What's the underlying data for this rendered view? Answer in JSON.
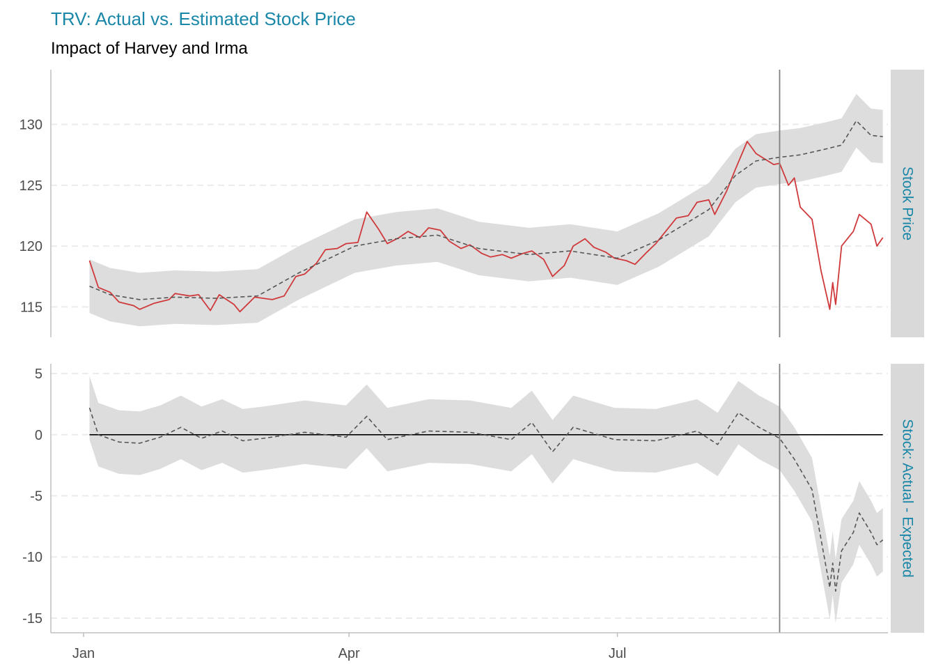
{
  "chart_title": "TRV: Actual vs. Estimated Stock Price",
  "chart_subtitle": "Impact of Harvey and Irma",
  "colors": {
    "title": "#1a87a8",
    "actual_line": "#d0393b",
    "expected_line": "#555555",
    "ribbon": "#dddddd",
    "strip_bg": "#d9d9d9",
    "gridline": "#ebebeb",
    "axis": "#bfbfbf",
    "event_line": "#808080"
  },
  "chart_data": [
    {
      "type": "line",
      "facet_label": "Stock Price",
      "x_domain": [
        "2017-01-03",
        "2017-09-29"
      ],
      "x_ticks": [
        "Jan",
        "Apr",
        "Jul"
      ],
      "y_ticks": [
        "115",
        "120",
        "125",
        "130"
      ],
      "ylim": [
        112.5,
        134.5
      ],
      "event_date": "2017-08-25",
      "grid": "horizontal dashed",
      "series": [
        {
          "role": "actual",
          "style": "solid red",
          "points": [
            [
              "2017-01-03",
              118.8
            ],
            [
              "2017-01-06",
              116.6
            ],
            [
              "2017-01-10",
              116.2
            ],
            [
              "2017-01-13",
              115.4
            ],
            [
              "2017-01-18",
              115.1
            ],
            [
              "2017-01-20",
              114.8
            ],
            [
              "2017-01-25",
              115.3
            ],
            [
              "2017-01-30",
              115.6
            ],
            [
              "2017-02-01",
              116.1
            ],
            [
              "2017-02-06",
              115.9
            ],
            [
              "2017-02-09",
              116.0
            ],
            [
              "2017-02-13",
              114.7
            ],
            [
              "2017-02-16",
              116.0
            ],
            [
              "2017-02-21",
              115.2
            ],
            [
              "2017-02-23",
              114.6
            ],
            [
              "2017-02-28",
              115.8
            ],
            [
              "2017-03-03",
              115.7
            ],
            [
              "2017-03-06",
              115.6
            ],
            [
              "2017-03-10",
              115.9
            ],
            [
              "2017-03-14",
              117.5
            ],
            [
              "2017-03-17",
              117.7
            ],
            [
              "2017-03-21",
              118.6
            ],
            [
              "2017-03-24",
              119.7
            ],
            [
              "2017-03-28",
              119.8
            ],
            [
              "2017-03-31",
              120.2
            ],
            [
              "2017-04-04",
              120.3
            ],
            [
              "2017-04-07",
              122.8
            ],
            [
              "2017-04-11",
              121.4
            ],
            [
              "2017-04-14",
              120.2
            ],
            [
              "2017-04-18",
              120.7
            ],
            [
              "2017-04-21",
              121.2
            ],
            [
              "2017-04-25",
              120.7
            ],
            [
              "2017-04-28",
              121.5
            ],
            [
              "2017-05-02",
              121.3
            ],
            [
              "2017-05-05",
              120.4
            ],
            [
              "2017-05-09",
              119.8
            ],
            [
              "2017-05-12",
              120.1
            ],
            [
              "2017-05-16",
              119.4
            ],
            [
              "2017-05-19",
              119.1
            ],
            [
              "2017-05-23",
              119.3
            ],
            [
              "2017-05-26",
              119.0
            ],
            [
              "2017-05-30",
              119.4
            ],
            [
              "2017-06-02",
              119.6
            ],
            [
              "2017-06-06",
              118.9
            ],
            [
              "2017-06-09",
              117.5
            ],
            [
              "2017-06-13",
              118.4
            ],
            [
              "2017-06-16",
              120.0
            ],
            [
              "2017-06-20",
              120.6
            ],
            [
              "2017-06-23",
              119.9
            ],
            [
              "2017-06-27",
              119.5
            ],
            [
              "2017-06-30",
              119.0
            ],
            [
              "2017-07-04",
              118.8
            ],
            [
              "2017-07-07",
              118.5
            ],
            [
              "2017-07-11",
              119.5
            ],
            [
              "2017-07-14",
              120.2
            ],
            [
              "2017-07-18",
              121.4
            ],
            [
              "2017-07-21",
              122.3
            ],
            [
              "2017-07-25",
              122.5
            ],
            [
              "2017-07-28",
              123.6
            ],
            [
              "2017-08-01",
              123.8
            ],
            [
              "2017-08-03",
              122.6
            ],
            [
              "2017-08-07",
              124.5
            ],
            [
              "2017-08-10",
              126.3
            ],
            [
              "2017-08-14",
              128.6
            ],
            [
              "2017-08-17",
              127.6
            ],
            [
              "2017-08-21",
              127.0
            ],
            [
              "2017-08-23",
              126.7
            ],
            [
              "2017-08-25",
              126.8
            ],
            [
              "2017-08-28",
              125.0
            ],
            [
              "2017-08-30",
              125.6
            ],
            [
              "2017-09-01",
              123.2
            ],
            [
              "2017-09-05",
              122.2
            ],
            [
              "2017-09-08",
              118.0
            ],
            [
              "2017-09-11",
              114.8
            ],
            [
              "2017-09-12",
              117.0
            ],
            [
              "2017-09-13",
              115.2
            ],
            [
              "2017-09-15",
              120.0
            ],
            [
              "2017-09-19",
              121.2
            ],
            [
              "2017-09-21",
              122.6
            ],
            [
              "2017-09-25",
              121.8
            ],
            [
              "2017-09-27",
              120.0
            ],
            [
              "2017-09-29",
              120.7
            ]
          ]
        },
        {
          "role": "expected",
          "style": "dashed grey",
          "points": [
            [
              "2017-01-03",
              116.7
            ],
            [
              "2017-01-10",
              116.0
            ],
            [
              "2017-01-20",
              115.6
            ],
            [
              "2017-02-01",
              115.8
            ],
            [
              "2017-02-15",
              115.7
            ],
            [
              "2017-03-01",
              115.9
            ],
            [
              "2017-03-15",
              117.8
            ],
            [
              "2017-04-03",
              120.0
            ],
            [
              "2017-04-17",
              120.6
            ],
            [
              "2017-05-01",
              120.9
            ],
            [
              "2017-05-15",
              119.8
            ],
            [
              "2017-06-01",
              119.3
            ],
            [
              "2017-06-15",
              119.6
            ],
            [
              "2017-07-01",
              119.0
            ],
            [
              "2017-07-15",
              120.5
            ],
            [
              "2017-08-01",
              123.0
            ],
            [
              "2017-08-10",
              125.8
            ],
            [
              "2017-08-17",
              127.0
            ],
            [
              "2017-08-25",
              127.3
            ],
            [
              "2017-09-01",
              127.5
            ],
            [
              "2017-09-10",
              128.0
            ],
            [
              "2017-09-15",
              128.3
            ],
            [
              "2017-09-20",
              130.3
            ],
            [
              "2017-09-25",
              129.1
            ],
            [
              "2017-09-29",
              129.0
            ]
          ]
        }
      ],
      "ribbon_halfwidth": 2.2
    },
    {
      "type": "line",
      "facet_label": "Stock: Actual - Expected",
      "x_domain": [
        "2017-01-03",
        "2017-09-29"
      ],
      "x_ticks": [
        "Jan",
        "Apr",
        "Jul"
      ],
      "y_ticks": [
        "5",
        "0",
        "-5",
        "-10",
        "-15"
      ],
      "ylim": [
        -16.2,
        5.8
      ],
      "event_date": "2017-08-25",
      "grid": "horizontal dashed",
      "series": [
        {
          "role": "zero_reference",
          "style": "solid",
          "points": [
            [
              "2017-01-03",
              0
            ],
            [
              "2017-09-29",
              0
            ]
          ]
        },
        {
          "role": "difference",
          "style": "dashed grey",
          "points": [
            [
              "2017-01-03",
              2.2
            ],
            [
              "2017-01-06",
              0.0
            ],
            [
              "2017-01-13",
              -0.6
            ],
            [
              "2017-01-20",
              -0.7
            ],
            [
              "2017-01-27",
              -0.2
            ],
            [
              "2017-02-03",
              0.6
            ],
            [
              "2017-02-10",
              -0.3
            ],
            [
              "2017-02-17",
              0.3
            ],
            [
              "2017-02-24",
              -0.5
            ],
            [
              "2017-03-03",
              -0.3
            ],
            [
              "2017-03-17",
              0.2
            ],
            [
              "2017-03-31",
              -0.2
            ],
            [
              "2017-04-07",
              1.5
            ],
            [
              "2017-04-14",
              -0.4
            ],
            [
              "2017-04-28",
              0.3
            ],
            [
              "2017-05-12",
              0.2
            ],
            [
              "2017-05-26",
              -0.4
            ],
            [
              "2017-06-02",
              1.0
            ],
            [
              "2017-06-09",
              -1.4
            ],
            [
              "2017-06-16",
              0.6
            ],
            [
              "2017-06-30",
              -0.4
            ],
            [
              "2017-07-14",
              -0.5
            ],
            [
              "2017-07-28",
              0.3
            ],
            [
              "2017-08-04",
              -0.8
            ],
            [
              "2017-08-11",
              1.8
            ],
            [
              "2017-08-18",
              0.6
            ],
            [
              "2017-08-25",
              -0.3
            ],
            [
              "2017-08-30",
              -2.0
            ],
            [
              "2017-09-05",
              -4.5
            ],
            [
              "2017-09-11",
              -12.5
            ],
            [
              "2017-09-12",
              -10.5
            ],
            [
              "2017-09-13",
              -12.8
            ],
            [
              "2017-09-15",
              -9.5
            ],
            [
              "2017-09-19",
              -8.0
            ],
            [
              "2017-09-21",
              -6.4
            ],
            [
              "2017-09-25",
              -8.0
            ],
            [
              "2017-09-27",
              -9.0
            ],
            [
              "2017-09-29",
              -8.6
            ]
          ]
        }
      ],
      "ribbon_halfwidth": 2.6
    }
  ]
}
